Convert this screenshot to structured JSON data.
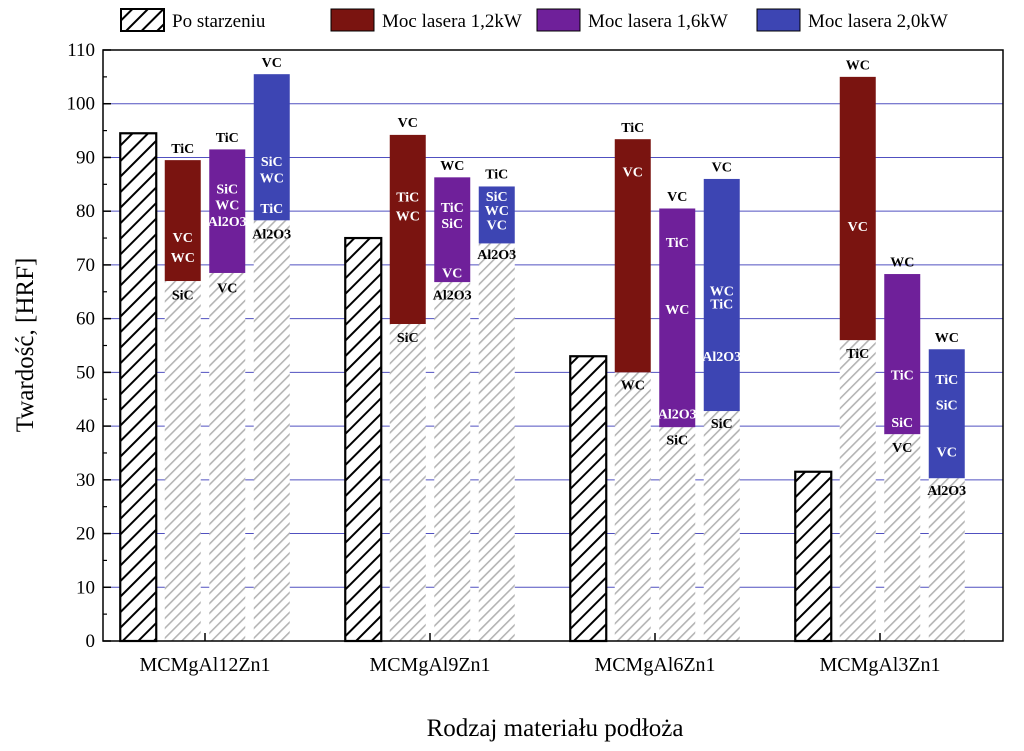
{
  "chart_data": {
    "type": "bar",
    "title": "",
    "xlabel": "Rodzaj materiału podłoża",
    "ylabel": "Twardość, [HRF]",
    "ylim": [
      0,
      110
    ],
    "yticks": [
      0,
      10,
      20,
      30,
      40,
      50,
      60,
      70,
      80,
      90,
      100,
      110
    ],
    "grid": true,
    "legend_position": "top",
    "categories": [
      "MCMgAl12Zn1",
      "MCMgAl9Zn1",
      "MCMgAl6Zn1",
      "MCMgAl3Zn1"
    ],
    "series": [
      {
        "name": "Po starzeniu",
        "key": "aged",
        "color": "#ffffff",
        "values": [
          94.5,
          75,
          53,
          31.5
        ]
      },
      {
        "name": "Moc lasera 1,2kW",
        "key": "p12",
        "color": "#7a1410",
        "base_values": [
          67,
          59,
          50,
          56
        ],
        "values": [
          89.5,
          94.2,
          93.4,
          105
        ]
      },
      {
        "name": "Moc lasera 1,6kW",
        "key": "p16",
        "color": "#6f209a",
        "base_values": [
          68.5,
          66.8,
          39.8,
          38.5
        ],
        "values": [
          91.5,
          86.3,
          80.5,
          68.3
        ]
      },
      {
        "name": "Moc lasera 2,0kW",
        "key": "p20",
        "color": "#3d45b3",
        "base_values": [
          78.3,
          74,
          42.8,
          30.3
        ],
        "values": [
          105.5,
          84.6,
          86,
          54.3
        ]
      }
    ],
    "annotations": [
      {
        "category": 0,
        "series": "p12",
        "labels": [
          {
            "text": "TiC",
            "y": 91.8,
            "color": "#000000"
          },
          {
            "text": "VC",
            "y": 75.2,
            "color": "#ffffff"
          },
          {
            "text": "WC",
            "y": 71.5,
            "color": "#ffffff"
          },
          {
            "text": "SiC",
            "y": 64.5,
            "color": "#000000"
          }
        ]
      },
      {
        "category": 0,
        "series": "p16",
        "labels": [
          {
            "text": "TiC",
            "y": 93.8,
            "color": "#000000"
          },
          {
            "text": "SiC",
            "y": 84.2,
            "color": "#ffffff"
          },
          {
            "text": "WC",
            "y": 81.2,
            "color": "#ffffff"
          },
          {
            "text": "Al2O3",
            "y": 78.2,
            "color": "#ffffff"
          },
          {
            "text": "VC",
            "y": 65.8,
            "color": "#000000"
          }
        ]
      },
      {
        "category": 0,
        "series": "p20",
        "labels": [
          {
            "text": "VC",
            "y": 107.8,
            "color": "#000000"
          },
          {
            "text": "SiC",
            "y": 89.3,
            "color": "#ffffff"
          },
          {
            "text": "WC",
            "y": 86.3,
            "color": "#ffffff"
          },
          {
            "text": "TiC",
            "y": 80.6,
            "color": "#ffffff"
          },
          {
            "text": "Al2O3",
            "y": 75.8,
            "color": "#000000"
          }
        ]
      },
      {
        "category": 1,
        "series": "p12",
        "labels": [
          {
            "text": "VC",
            "y": 96.6,
            "color": "#000000"
          },
          {
            "text": "TiC",
            "y": 82.7,
            "color": "#ffffff"
          },
          {
            "text": "WC",
            "y": 79.2,
            "color": "#ffffff"
          },
          {
            "text": "SiC",
            "y": 56.6,
            "color": "#000000"
          }
        ]
      },
      {
        "category": 1,
        "series": "p16",
        "labels": [
          {
            "text": "WC",
            "y": 88.6,
            "color": "#000000"
          },
          {
            "text": "TiC",
            "y": 80.8,
            "color": "#ffffff"
          },
          {
            "text": "SiC",
            "y": 77.8,
            "color": "#ffffff"
          },
          {
            "text": "VC",
            "y": 68.6,
            "color": "#ffffff"
          },
          {
            "text": "Al2O3",
            "y": 64.5,
            "color": "#000000"
          }
        ]
      },
      {
        "category": 1,
        "series": "p20",
        "labels": [
          {
            "text": "TiC",
            "y": 87,
            "color": "#000000"
          },
          {
            "text": "SiC",
            "y": 82.8,
            "color": "#ffffff"
          },
          {
            "text": "WC",
            "y": 80.2,
            "color": "#ffffff"
          },
          {
            "text": "VC",
            "y": 77.5,
            "color": "#ffffff"
          },
          {
            "text": "Al2O3",
            "y": 72,
            "color": "#000000"
          }
        ]
      },
      {
        "category": 2,
        "series": "p12",
        "labels": [
          {
            "text": "TiC",
            "y": 95.7,
            "color": "#000000"
          },
          {
            "text": "VC",
            "y": 87.4,
            "color": "#ffffff"
          },
          {
            "text": "WC",
            "y": 47.7,
            "color": "#000000"
          }
        ]
      },
      {
        "category": 2,
        "series": "p16",
        "labels": [
          {
            "text": "VC",
            "y": 82.8,
            "color": "#000000"
          },
          {
            "text": "TiC",
            "y": 74.3,
            "color": "#ffffff"
          },
          {
            "text": "WC",
            "y": 61.8,
            "color": "#ffffff"
          },
          {
            "text": "Al2O3",
            "y": 42.3,
            "color": "#ffffff"
          },
          {
            "text": "SiC",
            "y": 37.5,
            "color": "#000000"
          }
        ]
      },
      {
        "category": 2,
        "series": "p20",
        "labels": [
          {
            "text": "VC",
            "y": 88.3,
            "color": "#000000"
          },
          {
            "text": "WC",
            "y": 65.2,
            "color": "#ffffff"
          },
          {
            "text": "TiC",
            "y": 62.8,
            "color": "#ffffff"
          },
          {
            "text": "Al2O3",
            "y": 53,
            "color": "#ffffff"
          },
          {
            "text": "SiC",
            "y": 40.6,
            "color": "#000000"
          }
        ]
      },
      {
        "category": 3,
        "series": "p12",
        "labels": [
          {
            "text": "WC",
            "y": 107.3,
            "color": "#000000"
          },
          {
            "text": "VC",
            "y": 77.2,
            "color": "#ffffff"
          },
          {
            "text": "TiC",
            "y": 53.6,
            "color": "#000000"
          }
        ]
      },
      {
        "category": 3,
        "series": "p16",
        "labels": [
          {
            "text": "WC",
            "y": 70.6,
            "color": "#000000"
          },
          {
            "text": "TiC",
            "y": 49.6,
            "color": "#ffffff"
          },
          {
            "text": "SiC",
            "y": 40.8,
            "color": "#ffffff"
          },
          {
            "text": "VC",
            "y": 36.1,
            "color": "#000000"
          }
        ]
      },
      {
        "category": 3,
        "series": "p20",
        "labels": [
          {
            "text": "WC",
            "y": 56.6,
            "color": "#000000"
          },
          {
            "text": "TiC",
            "y": 48.8,
            "color": "#ffffff"
          },
          {
            "text": "SiC",
            "y": 44,
            "color": "#ffffff"
          },
          {
            "text": "VC",
            "y": 35.3,
            "color": "#ffffff"
          },
          {
            "text": "Al2O3",
            "y": 28.1,
            "color": "#000000"
          }
        ]
      }
    ]
  }
}
